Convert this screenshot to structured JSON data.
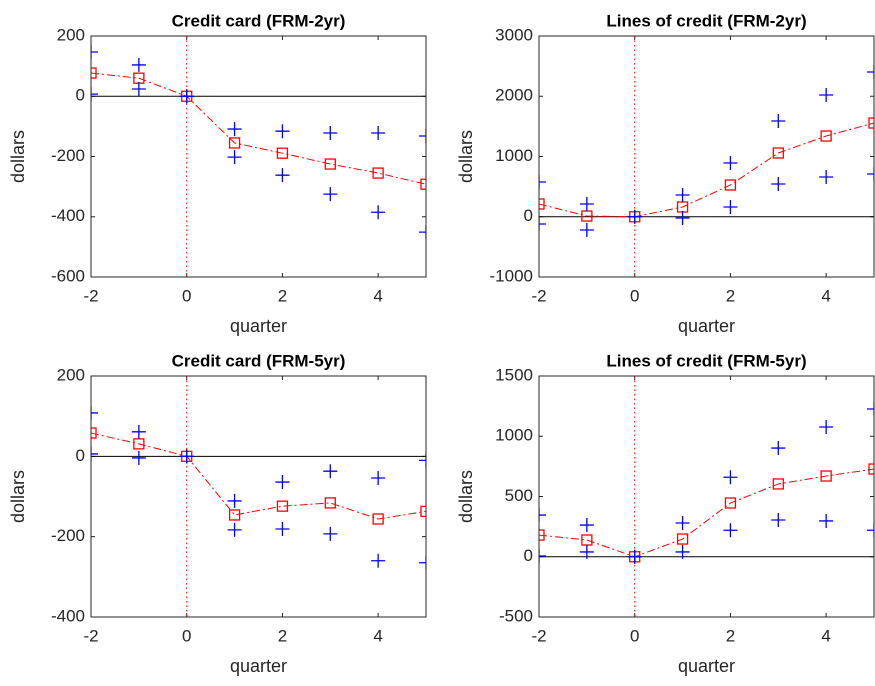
{
  "chart_data": [
    {
      "type": "line",
      "title": "Credit card (FRM-2yr)",
      "xlabel": "quarter",
      "ylabel": "dollars",
      "x": [
        -2,
        -1,
        0,
        1,
        2,
        3,
        4,
        5
      ],
      "xlim": [
        -2,
        5
      ],
      "xticks": [
        -2,
        0,
        2,
        4
      ],
      "ylim": [
        -600,
        200
      ],
      "yticks": [
        -600,
        -400,
        -200,
        0,
        200
      ],
      "series": [
        {
          "color": "#ff0000",
          "marker": "square",
          "line": "dashdot",
          "values": [
            77,
            60,
            0,
            -155,
            -189,
            -225,
            -255,
            -292
          ]
        },
        {
          "color": "#0000ff",
          "marker": "plus",
          "line": "none",
          "values": [
            147,
            104,
            0,
            -109,
            -116,
            -122,
            -122,
            -132
          ]
        },
        {
          "color": "#0000ff",
          "marker": "plus",
          "line": "none",
          "values": [
            7,
            24,
            0,
            -202,
            -262,
            -325,
            -385,
            -451
          ]
        }
      ]
    },
    {
      "type": "line",
      "title": "Lines of credit (FRM-2yr)",
      "xlabel": "quarter",
      "ylabel": "dollars",
      "x": [
        -2,
        -1,
        0,
        1,
        2,
        3,
        4,
        5
      ],
      "xlim": [
        -2,
        5
      ],
      "xticks": [
        -2,
        0,
        2,
        4
      ],
      "ylim": [
        -1000,
        3000
      ],
      "yticks": [
        -1000,
        0,
        1000,
        2000,
        3000
      ],
      "series": [
        {
          "color": "#ff0000",
          "marker": "square",
          "line": "dashdot",
          "values": [
            212,
            12,
            0,
            162,
            527,
            1058,
            1340,
            1556
          ]
        },
        {
          "color": "#0000ff",
          "marker": "plus",
          "line": "none",
          "values": [
            577,
            212,
            0,
            361,
            892,
            1589,
            2021,
            2402
          ]
        },
        {
          "color": "#0000ff",
          "marker": "plus",
          "line": "none",
          "values": [
            -120,
            -220,
            0,
            -20,
            162,
            544,
            660,
            710
          ]
        }
      ]
    },
    {
      "type": "line",
      "title": "Credit card (FRM-5yr)",
      "xlabel": "quarter",
      "ylabel": "dollars",
      "x": [
        -2,
        -1,
        0,
        1,
        2,
        3,
        4,
        5
      ],
      "xlim": [
        -2,
        5
      ],
      "xticks": [
        -2,
        0,
        2,
        4
      ],
      "ylim": [
        -400,
        200
      ],
      "yticks": [
        -400,
        -200,
        0,
        200
      ],
      "series": [
        {
          "color": "#ff0000",
          "marker": "square",
          "line": "dashdot",
          "values": [
            58,
            31,
            0,
            -146,
            -124,
            -116,
            -156,
            -137
          ]
        },
        {
          "color": "#0000ff",
          "marker": "plus",
          "line": "none",
          "values": [
            108,
            61,
            0,
            -111,
            -64,
            -37,
            -54,
            -10
          ]
        },
        {
          "color": "#0000ff",
          "marker": "plus",
          "line": "none",
          "values": [
            6,
            -4,
            0,
            -183,
            -181,
            -193,
            -260,
            -265
          ]
        }
      ]
    },
    {
      "type": "line",
      "title": "Lines of credit (FRM-5yr)",
      "xlabel": "quarter",
      "ylabel": "dollars",
      "x": [
        -2,
        -1,
        0,
        1,
        2,
        3,
        4,
        5
      ],
      "xlim": [
        -2,
        5
      ],
      "xticks": [
        -2,
        0,
        2,
        4
      ],
      "ylim": [
        -500,
        1500
      ],
      "yticks": [
        -500,
        0,
        500,
        1000,
        1500
      ],
      "series": [
        {
          "color": "#ff0000",
          "marker": "square",
          "line": "dashdot",
          "values": [
            180,
            139,
            0,
            147,
            446,
            604,
            670,
            728
          ]
        },
        {
          "color": "#0000ff",
          "marker": "plus",
          "line": "none",
          "values": [
            346,
            263,
            0,
            280,
            660,
            902,
            1077,
            1226
          ]
        },
        {
          "color": "#0000ff",
          "marker": "plus",
          "line": "none",
          "values": [
            6,
            40,
            0,
            40,
            220,
            305,
            297,
            220
          ]
        }
      ]
    }
  ]
}
